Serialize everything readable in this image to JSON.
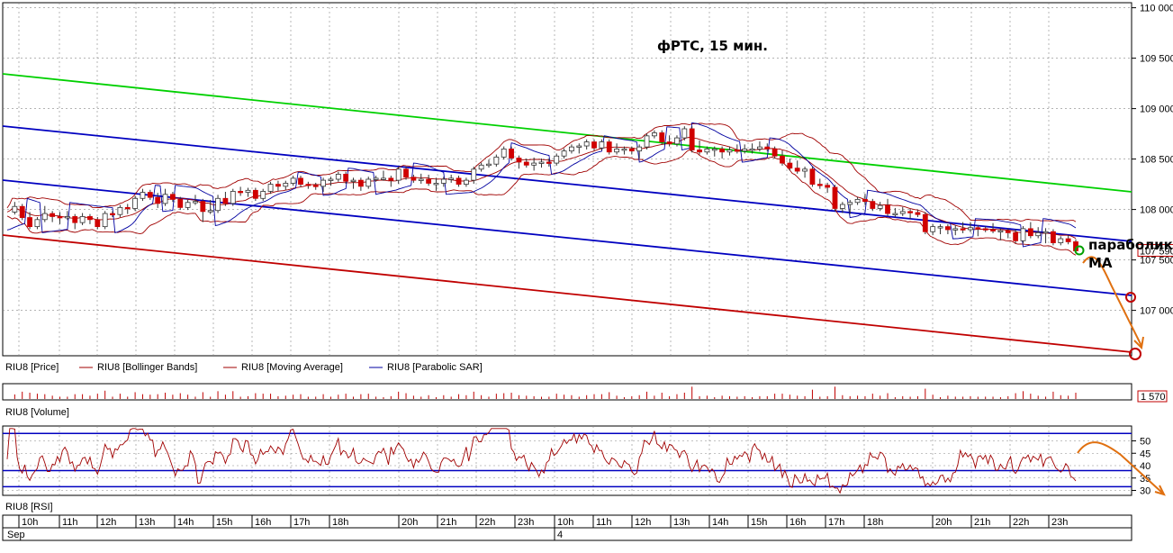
{
  "chart_data": {
    "type": "candlestick",
    "title": "фРТС, 15 мин.",
    "price_axis": {
      "range": [
        106550,
        110050
      ],
      "ticks": [
        "110 000",
        "109 500",
        "109 000",
        "108 500",
        "108 000",
        "107 500",
        "107 000"
      ],
      "tick_values": [
        110000,
        109500,
        109000,
        108500,
        108000,
        107500,
        107000
      ],
      "last_price_label": "107 590",
      "last_price": 107590
    },
    "volume_axis": {
      "label": "1 570",
      "value": 1570
    },
    "rsi_axis": {
      "ticks": [
        "50",
        "45",
        "40",
        "35",
        "30"
      ],
      "tick_values": [
        50,
        45,
        40,
        35,
        30
      ],
      "levels": [
        53,
        38,
        31.5
      ]
    },
    "legend": [
      {
        "label": "RIU8 [Price]",
        "color": "#000000"
      },
      {
        "label": "RIU8 [Bollinger Bands]",
        "color": "#a00000"
      },
      {
        "label": "RIU8 [Moving Average]",
        "color": "#a00000"
      },
      {
        "label": "RIU8 [Parabolic SAR]",
        "color": "#0000a0"
      }
    ],
    "panel_labels": {
      "volume": "RIU8 [Volume]",
      "rsi": "RIU8 [RSI]"
    },
    "time_axis": {
      "hours": [
        "10h",
        "11h",
        "12h",
        "13h",
        "14h",
        "15h",
        "16h",
        "17h",
        "18h",
        "20h",
        "21h",
        "22h",
        "23h",
        "10h",
        "11h",
        "12h",
        "13h",
        "14h",
        "15h",
        "16h",
        "17h",
        "18h",
        "20h",
        "21h",
        "22h",
        "23h"
      ],
      "month": "Sep",
      "day": "4"
    },
    "close": [
      107975,
      108000,
      108050,
      108030,
      107980,
      107940,
      107920,
      107950,
      107870,
      107830,
      107860,
      107880,
      107900,
      107990,
      108010,
      107960,
      107920,
      107900,
      107930,
      107880,
      107950,
      107920,
      107960,
      107950,
      107930,
      107830,
      107870,
      107870,
      107940,
      107900,
      107930,
      107920,
      107880,
      107900,
      107870,
      107830,
      107830,
      107880,
      107960,
      107960,
      107950,
      107960,
      107950,
      107970,
      107990,
      108020,
      107980,
      108030,
      108010,
      108040,
      108070,
      108110,
      108170,
      108180,
      108170,
      108140,
      108150,
      108120,
      108140,
      108040,
      108060,
      108120,
      108180,
      108150,
      108130,
      108100,
      108100,
      108020,
      108070,
      108020,
      108030,
      108050,
      108070,
      108120,
      108100,
      108080,
      107920,
      107900,
      107980,
      108050,
      108070,
      107990,
      108010,
      108120,
      108110,
      108150,
      108120,
      108060,
      108150,
      108160,
      108180,
      108160,
      108200,
      108170,
      108150,
      108180,
      108190,
      108160,
      108140,
      108110,
      108120,
      108130,
      108180,
      108210,
      108230,
      108250,
      108260,
      108210,
      108230,
      108240,
      108220,
      108260,
      108270,
      108290,
      108310,
      108280,
      108270,
      108250,
      108230,
      108250,
      108240,
      108230,
      108220,
      108230,
      108200,
      108230,
      108290,
      108260,
      108280,
      108300,
      108320,
      108330,
      108350,
      108280,
      108300,
      108280,
      108230,
      108260,
      108290,
      108210,
      108250,
      108230,
      108290,
      108290,
      108300,
      108300,
      108310,
      108310,
      108360,
      108330,
      108310,
      108290,
      108250,
      108290,
      108280,
      108300,
      108400,
      108380,
      108370,
      108320,
      108290,
      108310,
      108290,
      108330,
      108280,
      108300,
      108310,
      108320,
      108260,
      108210,
      108290,
      108260,
      108250,
      108290,
      108300,
      108320,
      108290,
      108310,
      108280,
      108250,
      108250,
      108270,
      108280,
      108290,
      108280,
      108310,
      108400,
      108440,
      108420,
      108440,
      108450,
      108470,
      108450,
      108480,
      108500,
      108520,
      108530,
      108580,
      108600,
      108570,
      108580,
      108510,
      108470,
      108430,
      108470,
      108480,
      108480,
      108440,
      108410,
      108490,
      108460,
      108480,
      108440,
      108470,
      108450,
      108480,
      108460,
      108520,
      108500,
      108530,
      108570,
      108560,
      108580,
      108610,
      108600,
      108620,
      108610,
      108580,
      108630,
      108620,
      108630,
      108670,
      108610,
      108620,
      108610,
      108660,
      108640,
      108670,
      108610,
      108600,
      108570,
      108590,
      108630,
      108600,
      108570,
      108600,
      108600,
      108590,
      108570,
      108580,
      108530,
      108570,
      108620,
      108650,
      108730,
      108730,
      108740,
      108740,
      108760,
      108710,
      108700,
      108670,
      108710,
      108650,
      108650,
      108680,
      108690,
      108710,
      108740,
      108780,
      108800,
      108770,
      108700,
      108590,
      108630,
      108660,
      108570,
      108580,
      108590,
      108600,
      108550,
      108600,
      108600,
      108530,
      108540,
      108570,
      108560,
      108600,
      108590,
      108620,
      108590,
      108580,
      108620,
      108620,
      108600,
      108630,
      108580,
      108600,
      108650,
      108640,
      108620,
      108600,
      108630,
      108600,
      108570,
      108600,
      108530,
      108550,
      108560,
      108460,
      108480,
      108430,
      108410,
      108380,
      108460,
      108380,
      108360,
      108340,
      108400,
      108320,
      108280,
      108250,
      108230,
      108280,
      108240,
      108210,
      108190,
      108220,
      108130,
      108080,
      108010,
      107990,
      108000,
      108050,
      107980,
      107980,
      108070,
      108090,
      108090,
      108100,
      108130,
      108070,
      108080,
      108020,
      108070,
      108010,
      108020,
      108050,
      108040,
      108030,
      108080,
      107960,
      107990,
      107950,
      107960,
      108000,
      107990,
      107980,
      107980,
      107930,
      107970,
      107960,
      107970,
      107950,
      107930,
      107830,
      107780,
      107780,
      107770,
      107830,
      107780,
      107790,
      107830,
      107790,
      107780,
      107800,
      107770,
      107820,
      107810,
      107790,
      107850,
      107800,
      107830,
      107850,
      107820,
      107790,
      107760,
      107810,
      107810,
      107800,
      107800,
      107790,
      107840,
      107790,
      107770,
      107720,
      107790,
      107780,
      107740,
      107770,
      107780,
      107720,
      107690,
      107710,
      107770,
      107810,
      107850,
      107830,
      107740,
      107750,
      107800,
      107770,
      107790,
      107690,
      107780,
      107740,
      107720,
      107670,
      107670,
      107690,
      107710,
      107720,
      107700,
      107680,
      107640,
      107590,
      107590
    ]
  }
}
